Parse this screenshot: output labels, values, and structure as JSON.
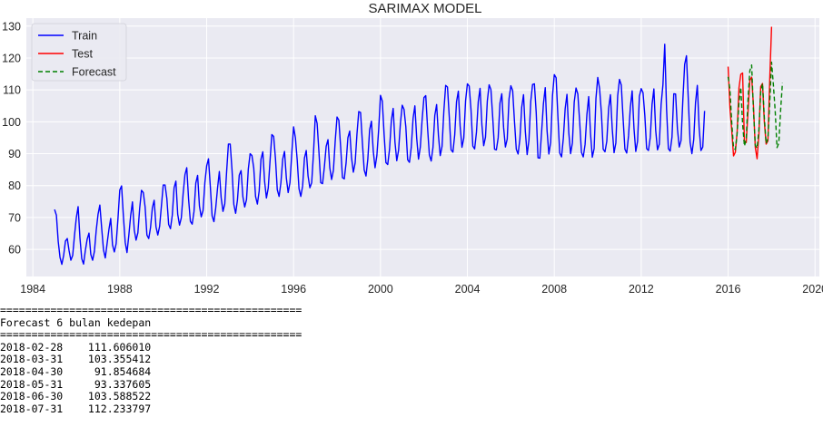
{
  "chart_data": {
    "type": "line",
    "title": "SARIMAX MODEL",
    "xlabel": "",
    "ylabel": "",
    "xlim": [
      1983.7,
      2020.2
    ],
    "ylim": [
      51.5,
      132.5
    ],
    "xticks": [
      1984,
      1988,
      1992,
      1996,
      2000,
      2004,
      2008,
      2012,
      2016,
      2020
    ],
    "yticks": [
      60,
      70,
      80,
      90,
      100,
      110,
      120,
      130
    ],
    "grid": true,
    "legend_position": "top-left",
    "background": "#eaeaf2",
    "series": [
      {
        "name": "Train",
        "color": "#0000ff",
        "style": "solid",
        "start": "1985-01",
        "freq": "monthly",
        "values": [
          72.5,
          70.7,
          62.5,
          57.5,
          55.3,
          58.1,
          62.6,
          63.4,
          59.6,
          56.6,
          58.1,
          64.4,
          69.9,
          73.4,
          63.6,
          57.1,
          55.4,
          59.7,
          63.2,
          65.1,
          58.4,
          56.6,
          59.4,
          66.0,
          71.0,
          73.9,
          66.7,
          59.9,
          57.3,
          61.8,
          66.2,
          69.7,
          61.4,
          59.2,
          61.8,
          69.6,
          78.6,
          79.9,
          70.5,
          62.2,
          59.0,
          64.4,
          70.5,
          74.9,
          66.1,
          62.9,
          65.2,
          72.9,
          78.5,
          77.8,
          73.3,
          64.5,
          63.4,
          66.9,
          73.0,
          75.4,
          67.1,
          64.5,
          67.2,
          73.6,
          80.2,
          80.2,
          76.0,
          67.8,
          66.5,
          70.7,
          79.3,
          81.4,
          71.0,
          67.6,
          69.9,
          77.5,
          83.4,
          85.6,
          75.8,
          68.8,
          67.9,
          71.9,
          80.8,
          83.2,
          73.6,
          70.2,
          72.2,
          80.9,
          86.2,
          88.4,
          79.9,
          70.5,
          68.7,
          73.0,
          79.2,
          84.4,
          76.2,
          71.9,
          74.3,
          84.2,
          93.0,
          93.0,
          84.9,
          74.1,
          71.3,
          75.5,
          83.3,
          84.7,
          76.5,
          73.3,
          75.6,
          85.2,
          90.0,
          89.4,
          85.5,
          76.6,
          74.2,
          78.3,
          88.3,
          90.6,
          81.3,
          76.1,
          79.2,
          87.8,
          96.0,
          95.4,
          88.4,
          78.7,
          76.6,
          80.9,
          88.3,
          90.7,
          82.4,
          77.8,
          80.9,
          90.1,
          98.4,
          95.0,
          88.0,
          79.0,
          76.6,
          79.9,
          88.6,
          91.0,
          83.0,
          79.3,
          80.9,
          90.2,
          101.9,
          99.5,
          90.6,
          80.9,
          80.6,
          85.8,
          92.3,
          94.4,
          85.6,
          81.9,
          84.8,
          94.0,
          101.5,
          100.5,
          92.1,
          82.5,
          82.1,
          87.1,
          95.0,
          97.1,
          88.8,
          84.2,
          87.1,
          96.1,
          103.2,
          102.9,
          93.5,
          84.9,
          83.0,
          88.3,
          97.5,
          100.2,
          90.9,
          85.6,
          89.4,
          97.6,
          108.3,
          106.5,
          96.0,
          87.2,
          86.6,
          91.4,
          100.4,
          104.2,
          93.6,
          87.8,
          91.1,
          99.4,
          105.2,
          103.9,
          98.4,
          88.1,
          87.3,
          92.0,
          101.1,
          105.0,
          94.9,
          88.3,
          92.1,
          100.7,
          107.6,
          108.2,
          98.1,
          89.6,
          87.7,
          92.0,
          102.0,
          105.4,
          95.8,
          89.4,
          92.3,
          103.4,
          111.4,
          110.9,
          101.5,
          91.2,
          90.5,
          95.9,
          106.3,
          109.6,
          98.6,
          92.0,
          94.9,
          106.6,
          111.9,
          111.2,
          103.7,
          92.4,
          91.5,
          96.7,
          106.3,
          110.5,
          99.1,
          92.5,
          95.2,
          106.5,
          111.6,
          110.1,
          101.3,
          91.4,
          91.2,
          95.0,
          105.9,
          108.8,
          98.2,
          92.1,
          94.6,
          107.2,
          111.3,
          109.8,
          100.2,
          91.4,
          89.9,
          94.6,
          104.6,
          108.5,
          97.0,
          89.7,
          94.3,
          106.4,
          111.7,
          111.9,
          103.0,
          88.7,
          88.6,
          96.9,
          105.7,
          110.7,
          97.2,
          89.9,
          93.6,
          108.1,
          114.8,
          113.8,
          101.6,
          90.2,
          89.0,
          94.9,
          104.1,
          108.6,
          96.6,
          90.0,
          93.4,
          106.2,
          110.6,
          108.7,
          100.1,
          90.4,
          89.0,
          92.9,
          102.2,
          107.9,
          96.3,
          88.9,
          91.6,
          107.3,
          113.9,
          110.5,
          102.9,
          91.4,
          90.6,
          93.9,
          104.2,
          108.5,
          97.8,
          90.3,
          93.4,
          108.1,
          113.3,
          111.5,
          101.0,
          91.4,
          90.2,
          95.6,
          104.6,
          109.7,
          98.0,
          90.7,
          93.9,
          108.0,
          110.4,
          109.1,
          102.0,
          91.6,
          91.0,
          95.1,
          105.5,
          110.3,
          97.3,
          91.2,
          93.0,
          105.5,
          111.6,
          124.3,
          104.1,
          91.6,
          90.8,
          95.2,
          108.8,
          108.7,
          97.8,
          92.1,
          94.1,
          106.9,
          118.0,
          120.7,
          107.2,
          93.6,
          90.0,
          94.4,
          106.0,
          111.4,
          98.1,
          91.0,
          92.1,
          103.4
        ]
      },
      {
        "name": "Test",
        "color": "#ff0000",
        "style": "solid",
        "start": "2016-01",
        "freq": "monthly",
        "values": [
          117.3,
          104.4,
          97.3,
          89.3,
          90.5,
          97.0,
          110.6,
          114.9,
          115.3,
          94.0,
          93.5,
          103.2,
          113.0,
          114.0,
          105.0,
          92.0,
          88.4,
          96.0,
          111.0,
          112.0,
          100.0,
          93.0,
          94.0,
          113.5,
          129.8
        ]
      },
      {
        "name": "Forecast",
        "color": "#008000",
        "style": "dashed",
        "start": "2016-01",
        "freq": "monthly",
        "values": [
          114.1,
          110.2,
          99.8,
          91.8,
          91.3,
          96.4,
          106.0,
          110.8,
          99.4,
          92.4,
          94.6,
          107.2,
          116.0,
          117.8,
          103.6,
          92.7,
          91.7,
          97.5,
          109.3,
          112.0,
          101.4,
          93.2,
          94.7,
          106.1,
          118.7,
          111.6,
          103.4,
          91.9,
          93.3,
          103.6,
          112.2
        ]
      }
    ]
  },
  "output_lines": [
    "================================================",
    "Forecast 6 bulan kedepan",
    "================================================",
    "2018-02-28    111.606010",
    "2018-03-31    103.355412",
    "2018-04-30     91.854684",
    "2018-05-31     93.337605",
    "2018-06-30    103.588522",
    "2018-07-31    112.233797"
  ]
}
